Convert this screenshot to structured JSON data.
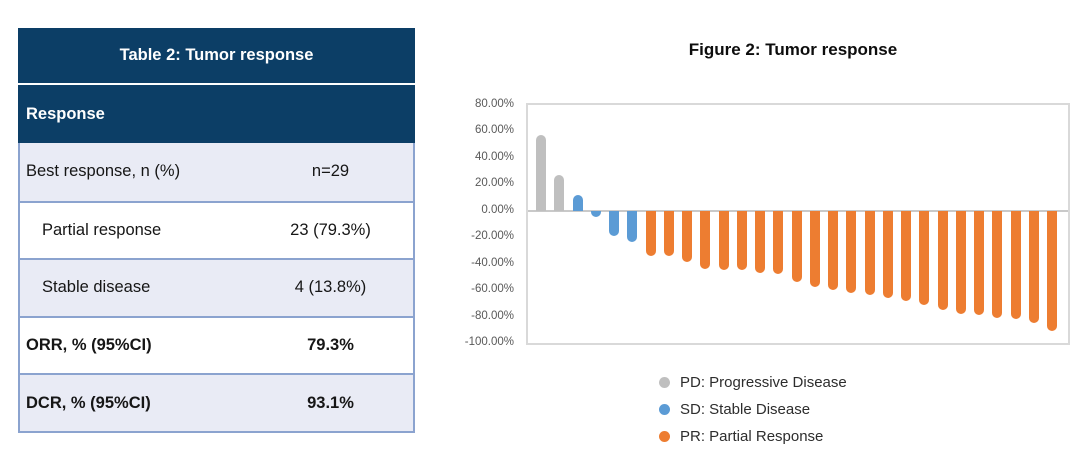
{
  "table": {
    "title": "Table 2: Tumor response",
    "header_row": "Response",
    "rows": [
      {
        "label": "Best response, n (%)",
        "value": "n=29",
        "indent": false,
        "bold": false,
        "shaded": true
      },
      {
        "label": "Partial response",
        "value": "23 (79.3%)",
        "indent": true,
        "bold": false,
        "shaded": false
      },
      {
        "label": "Stable disease",
        "value": "4 (13.8%)",
        "indent": true,
        "bold": false,
        "shaded": true
      },
      {
        "label": "ORR, % (95%CI)",
        "value": "79.3%",
        "indent": false,
        "bold": true,
        "shaded": false
      },
      {
        "label": "DCR, % (95%CI)",
        "value": "93.1%",
        "indent": false,
        "bold": true,
        "shaded": true
      }
    ],
    "header_bg": "#0c3e66",
    "shaded_row_bg": "#e9ebf5",
    "border_color": "#8ba3cf"
  },
  "figure": {
    "title": "Figure 2: Tumor response",
    "legend": [
      {
        "id": "PD",
        "label": "PD: Progressive Disease",
        "color": "#BFBFBF"
      },
      {
        "id": "SD",
        "label": "SD: Stable Disease",
        "color": "#5B9BD5"
      },
      {
        "id": "PR",
        "label": "PR: Partial Response",
        "color": "#ED7D31"
      }
    ]
  },
  "chart_data": {
    "type": "bar",
    "subtype": "waterfall-best-percent-change",
    "title": "Figure 2: Tumor response",
    "xlabel": "",
    "ylabel": "",
    "ylim": [
      -100,
      80
    ],
    "grid": false,
    "legend_position": "bottom",
    "yticks": [
      {
        "value": 80,
        "label": "80.00%"
      },
      {
        "value": 60,
        "label": "60.00%"
      },
      {
        "value": 40,
        "label": "40.00%"
      },
      {
        "value": 20,
        "label": "20.00%"
      },
      {
        "value": 0,
        "label": "0.00%"
      },
      {
        "value": -20,
        "label": "-20.00%"
      },
      {
        "value": -40,
        "label": "-40.00%"
      },
      {
        "value": -60,
        "label": "-60.00%"
      },
      {
        "value": -80,
        "label": "-80.00%"
      },
      {
        "value": -100,
        "label": "-100.00%"
      }
    ],
    "group_colors": {
      "PD": "#BFBFBF",
      "SD": "#5B9BD5",
      "PR": "#ED7D31"
    },
    "series": [
      {
        "name": "PD: Progressive Disease",
        "values": [
          57,
          27
        ]
      },
      {
        "name": "SD: Stable Disease",
        "values": [
          12,
          -5,
          -19,
          -24
        ]
      },
      {
        "name": "PR: Partial Response",
        "values": [
          -34,
          -34,
          -39,
          -44,
          -45,
          -45,
          -47,
          -48,
          -54,
          -58,
          -60,
          -62,
          -64,
          -66,
          -68,
          -71,
          -75,
          -78,
          -79,
          -81,
          -82,
          -85,
          -91
        ]
      }
    ],
    "bars": [
      {
        "group": "PD",
        "value": 57
      },
      {
        "group": "PD",
        "value": 27
      },
      {
        "group": "SD",
        "value": 12
      },
      {
        "group": "SD",
        "value": -5
      },
      {
        "group": "SD",
        "value": -19
      },
      {
        "group": "SD",
        "value": -24
      },
      {
        "group": "PR",
        "value": -34
      },
      {
        "group": "PR",
        "value": -34
      },
      {
        "group": "PR",
        "value": -39
      },
      {
        "group": "PR",
        "value": -44
      },
      {
        "group": "PR",
        "value": -45
      },
      {
        "group": "PR",
        "value": -45
      },
      {
        "group": "PR",
        "value": -47
      },
      {
        "group": "PR",
        "value": -48
      },
      {
        "group": "PR",
        "value": -54
      },
      {
        "group": "PR",
        "value": -58
      },
      {
        "group": "PR",
        "value": -60
      },
      {
        "group": "PR",
        "value": -62
      },
      {
        "group": "PR",
        "value": -64
      },
      {
        "group": "PR",
        "value": -66
      },
      {
        "group": "PR",
        "value": -68
      },
      {
        "group": "PR",
        "value": -71
      },
      {
        "group": "PR",
        "value": -75
      },
      {
        "group": "PR",
        "value": -78
      },
      {
        "group": "PR",
        "value": -79
      },
      {
        "group": "PR",
        "value": -81
      },
      {
        "group": "PR",
        "value": -82
      },
      {
        "group": "PR",
        "value": -85
      },
      {
        "group": "PR",
        "value": -91
      }
    ]
  }
}
